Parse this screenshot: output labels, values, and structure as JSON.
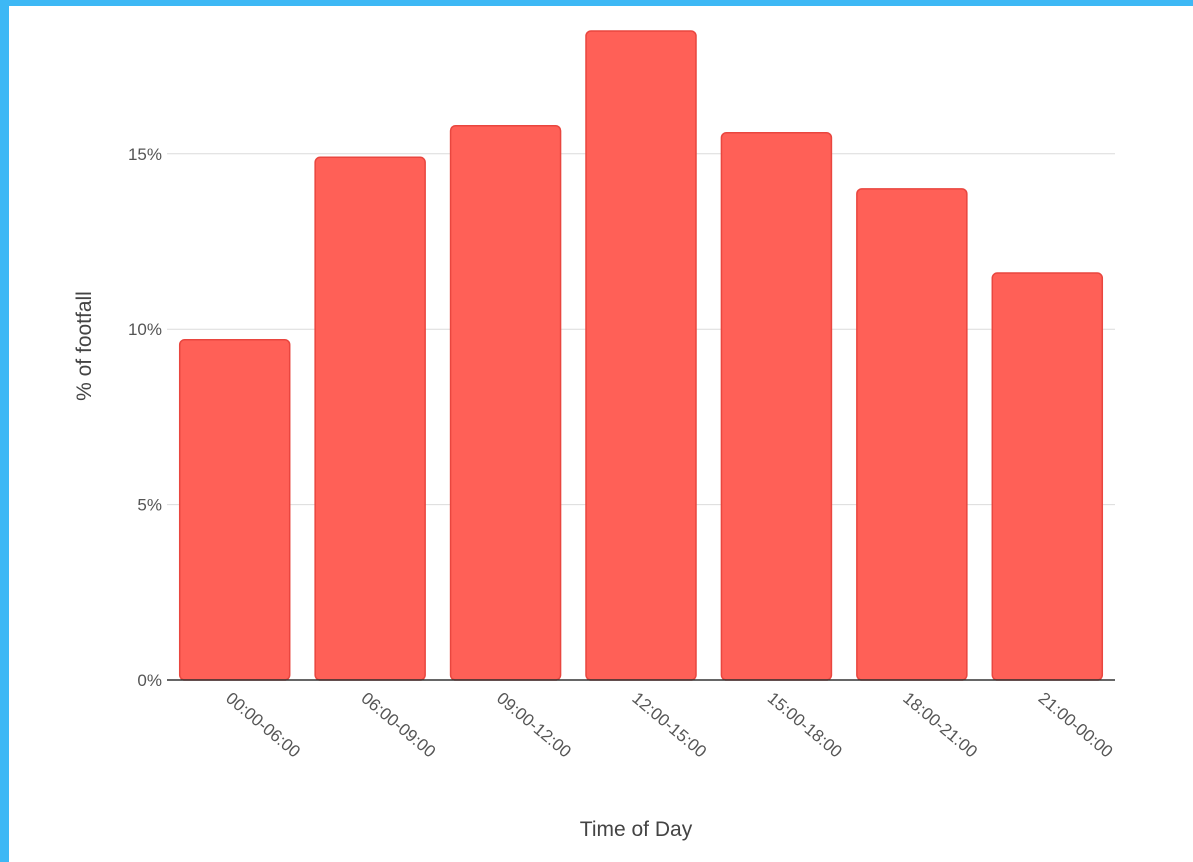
{
  "colors": {
    "frame": "#3db8f5",
    "bar": "#ff6057",
    "bar_edge": "#e9463f",
    "grid": "#dcdcdc",
    "axis": "#333333"
  },
  "chart_data": {
    "type": "bar",
    "title": "",
    "xlabel": "Time of Day",
    "ylabel": "% of footfall",
    "categories": [
      "00:00-06:00",
      "06:00-09:00",
      "09:00-12:00",
      "12:00-15:00",
      "15:00-18:00",
      "18:00-21:00",
      "21:00-00:00"
    ],
    "values": [
      9.7,
      14.9,
      15.8,
      18.5,
      15.6,
      14.0,
      11.6
    ],
    "ylim": [
      0,
      18.5
    ],
    "yticks": [
      0,
      5,
      10,
      15
    ],
    "ytick_labels": [
      "0%",
      "5%",
      "10%",
      "15%"
    ],
    "grid": true,
    "legend": "none"
  }
}
